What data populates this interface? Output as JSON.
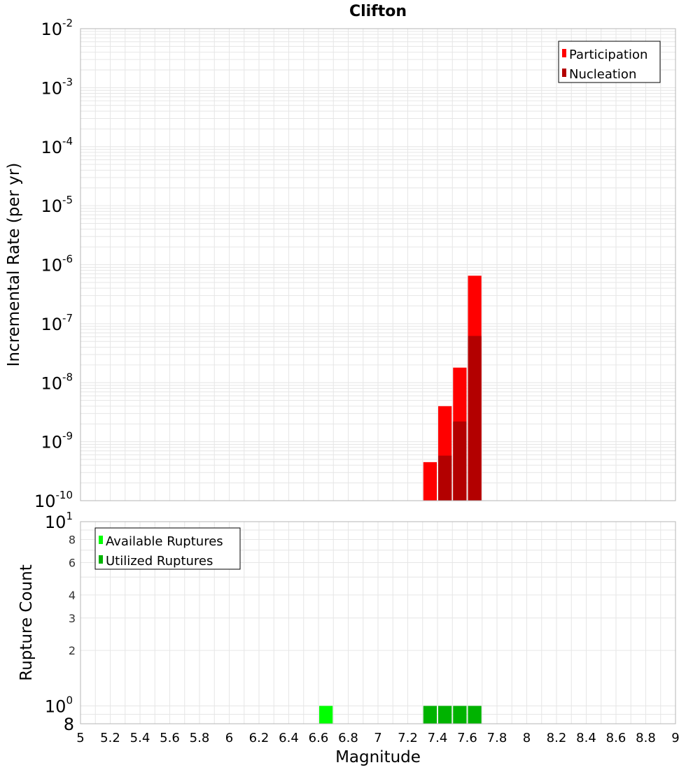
{
  "colors": {
    "participation": "#ff0000",
    "nucleation": "#b30000",
    "available": "#00ff00",
    "utilized": "#00b300",
    "grid": "#e6e6e6",
    "frame": "#b5b5b5"
  },
  "chart_data": [
    {
      "type": "bar",
      "title": "Clifton",
      "xlabel": "",
      "ylabel": "Incremental Rate (per yr)",
      "yscale": "log",
      "xlim": [
        5,
        9
      ],
      "ylim": [
        1e-10,
        0.01
      ],
      "y_ticks": [
        {
          "base": "10",
          "exp": "-2",
          "value": 0.01
        },
        {
          "base": "10",
          "exp": "-3",
          "value": 0.001
        },
        {
          "base": "10",
          "exp": "-4",
          "value": 0.0001
        },
        {
          "base": "10",
          "exp": "-5",
          "value": 1e-05
        },
        {
          "base": "10",
          "exp": "-6",
          "value": 1e-06
        },
        {
          "base": "10",
          "exp": "-7",
          "value": 1e-07
        },
        {
          "base": "10",
          "exp": "-8",
          "value": 1e-08
        },
        {
          "base": "10",
          "exp": "-9",
          "value": 1e-09
        },
        {
          "base": "10",
          "exp": "-10",
          "value": 1e-10
        }
      ],
      "grid": true,
      "legend": {
        "placement": "top-right",
        "entries": [
          "Participation",
          "Nucleation"
        ]
      },
      "bin_width": 0.1,
      "series": [
        {
          "name": "Participation",
          "x": [
            7.35,
            7.45,
            7.55,
            7.65
          ],
          "values": [
            4.5e-10,
            4e-09,
            1.8e-08,
            6.5e-07
          ]
        },
        {
          "name": "Nucleation",
          "x": [
            7.45,
            7.55,
            7.65
          ],
          "values": [
            5.8e-10,
            2.2e-09,
            6.2e-08
          ]
        }
      ]
    },
    {
      "type": "bar",
      "title": "",
      "xlabel": "Magnitude",
      "ylabel": "Rupture Count",
      "yscale": "log",
      "xlim": [
        5,
        9
      ],
      "ylim": [
        0.8,
        10
      ],
      "x_ticks": [
        "5",
        "5.2",
        "5.4",
        "5.6",
        "5.8",
        "6",
        "6.2",
        "6.4",
        "6.6",
        "6.8",
        "7",
        "7.2",
        "7.4",
        "7.6",
        "7.8",
        "8",
        "8.2",
        "8.4",
        "8.6",
        "8.8",
        "9"
      ],
      "y_ticks_major": [
        {
          "base": "10",
          "exp": "1",
          "value": 10
        },
        {
          "base": "10",
          "exp": "0",
          "value": 1
        }
      ],
      "y_ticks_minor": [
        {
          "label": "8",
          "value": 8
        },
        {
          "label": "6",
          "value": 6
        },
        {
          "label": "4",
          "value": 4
        },
        {
          "label": "3",
          "value": 3
        },
        {
          "label": "2",
          "value": 2
        }
      ],
      "y_bottom_label": {
        "label": "8",
        "value": 0.8
      },
      "grid": true,
      "legend": {
        "placement": "top-left",
        "entries": [
          "Available Ruptures",
          "Utilized Ruptures"
        ]
      },
      "bin_width": 0.1,
      "series": [
        {
          "name": "Available Ruptures",
          "x": [
            6.65
          ],
          "values": [
            1
          ]
        },
        {
          "name": "Utilized Ruptures",
          "x": [
            7.35,
            7.45,
            7.55,
            7.65
          ],
          "values": [
            1,
            1,
            1,
            1
          ]
        }
      ]
    }
  ]
}
